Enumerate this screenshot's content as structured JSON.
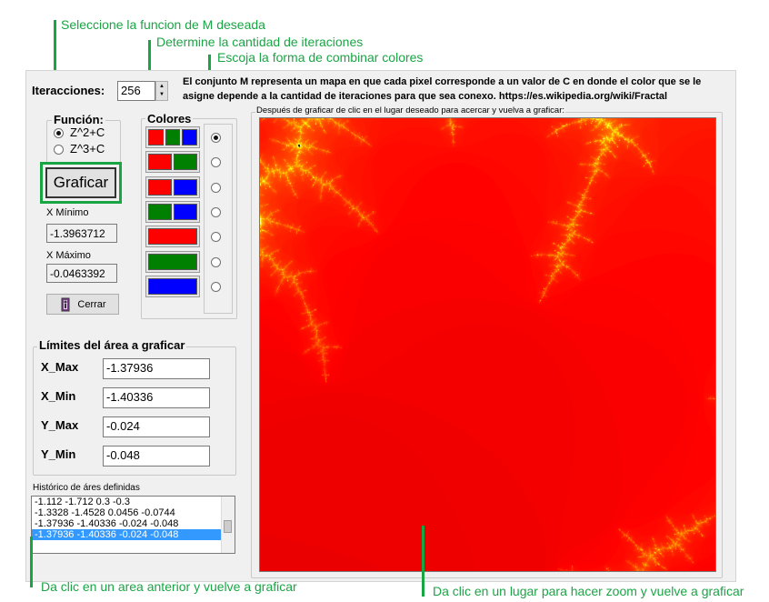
{
  "annotations": {
    "funcion": "Seleccione la funcion de M deseada",
    "iteraciones": "Determine la cantidad de iteraciones",
    "colores": "Escoja la forma de combinar colores",
    "historico": "Da clic en un area anterior y vuelve a graficar",
    "zoom": "Da clic en un lugar para hacer zoom y vuelve a graficar"
  },
  "iterations": {
    "label": "Iteracciones:",
    "value": "256"
  },
  "description": "El conjunto M representa un mapa en que cada pixel corresponde a un valor de C en donde el color que se le asigne depende a la cantidad de iteraciones para que sea conexo. https://es.wikipedia.org/wiki/Fractal",
  "function_group": {
    "title": "Función:",
    "options": [
      "Z^2+C",
      "Z^3+C"
    ],
    "selected": 0
  },
  "graph_button": "Graficar",
  "x_min": {
    "label": "X Mínimo",
    "value": "-1.3963712"
  },
  "x_max": {
    "label": "X Máximo",
    "value": "-0.0463392"
  },
  "close_button": "Cerrar",
  "colors_group": {
    "title": "Colores",
    "selected": 0,
    "options": [
      [
        "#ff0000",
        "#008000",
        "#0000ff"
      ],
      [
        "#ff0000",
        "#008000"
      ],
      [
        "#ff0000",
        "#0000ff"
      ],
      [
        "#008000",
        "#0000ff"
      ],
      [
        "#ff0000"
      ],
      [
        "#008000"
      ],
      [
        "#0000ff"
      ]
    ]
  },
  "limits": {
    "title": "Límites del área a graficar",
    "fields": [
      {
        "label": "X_Max",
        "value": "-1.37936"
      },
      {
        "label": "X_Min",
        "value": "-1.40336"
      },
      {
        "label": "Y_Max",
        "value": "-0.024"
      },
      {
        "label": "Y_Min",
        "value": "-0.048"
      }
    ]
  },
  "history": {
    "title": "Histórico de áres definidas",
    "items": [
      "-1.112 -1.712 0.3 -0.3",
      "-1.3328 -1.4528 0.0456 -0.0744",
      "-1.37936 -1.40336 -0.024 -0.048",
      "-1.37936 -1.40336 -0.024 -0.048"
    ],
    "selected": 3
  },
  "fractal": {
    "title": "Después de graficar de clic en el lugar deseado para acercar y vuelva a graficar:",
    "palette": [
      "#ff0000",
      "#ffff00",
      "#ffffff"
    ]
  }
}
